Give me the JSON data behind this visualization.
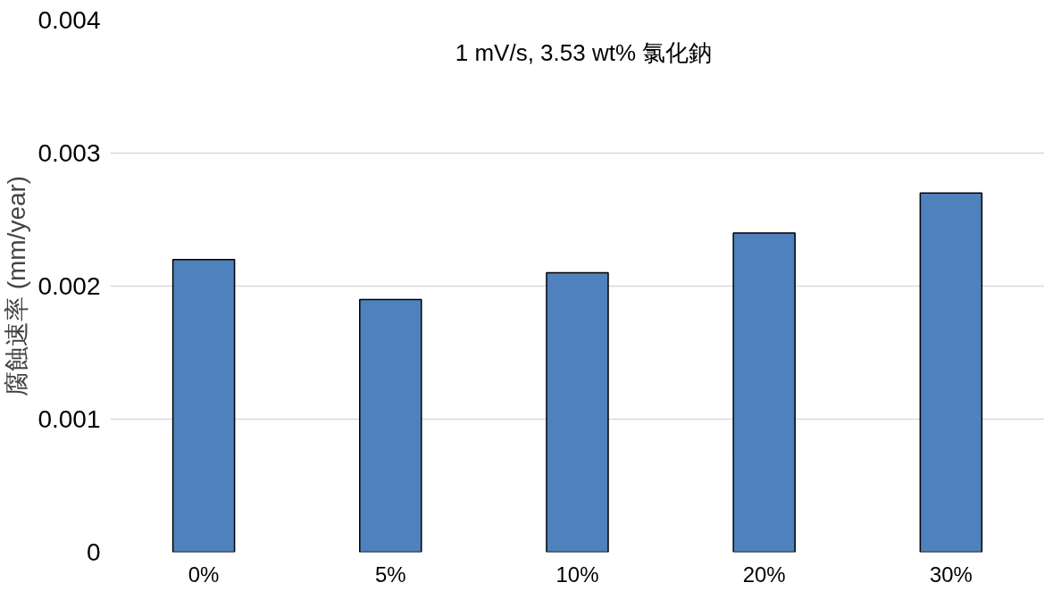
{
  "chart_data": {
    "type": "bar",
    "title": "1 mV/s, 3.53 wt% 氯化鈉",
    "ylabel": "腐蝕速率 (mm/year)",
    "categories": [
      "0%",
      "5%",
      "10%",
      "20%",
      "30%"
    ],
    "values": [
      0.0022,
      0.0019,
      0.0021,
      0.0024,
      0.0027
    ],
    "color": "#4f81bd",
    "ylim": [
      0,
      0.004
    ],
    "yticks": [
      0,
      0.001,
      0.002,
      0.003,
      0.004
    ],
    "grid": "y"
  }
}
